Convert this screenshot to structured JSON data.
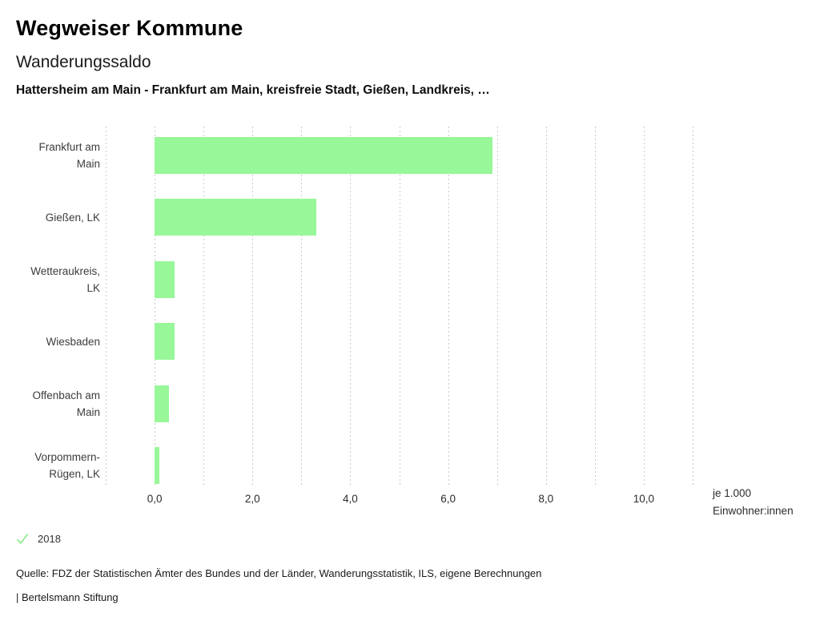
{
  "header": {
    "title": "Wegweiser Kommune",
    "subtitle": "Wanderungssaldo",
    "context": "Hattersheim am Main - Frankfurt am Main, kreisfreie Stadt, Gießen, Landkreis, …"
  },
  "chart_data": {
    "type": "bar",
    "orientation": "horizontal",
    "title": "Wanderungssaldo",
    "categories": [
      "Frankfurt am Main",
      "Gießen, LK",
      "Wetteraukreis, LK",
      "Wiesbaden",
      "Offenbach am Main",
      "Vorpommern-Rügen, LK"
    ],
    "label_lines": [
      [
        "Frankfurt am",
        "Main"
      ],
      [
        "Gießen, LK"
      ],
      [
        "Wetteraukreis,",
        "LK"
      ],
      [
        "Wiesbaden"
      ],
      [
        "Offenbach am",
        "Main"
      ],
      [
        "Vorpommern-",
        "Rügen, LK"
      ]
    ],
    "series": [
      {
        "name": "2018",
        "values": [
          6.9,
          3.3,
          0.4,
          0.4,
          0.3,
          0.1
        ]
      }
    ],
    "xlim": [
      -1,
      11
    ],
    "gridline_step": 1,
    "x_tick_values": [
      0,
      2,
      4,
      6,
      8,
      10
    ],
    "x_tick_labels": [
      "0,0",
      "2,0",
      "4,0",
      "6,0",
      "8,0",
      "10,0"
    ],
    "xlabel": "je 1.000 Einwohner:innen",
    "ylabel": "",
    "grid": true,
    "legend_position": "bottom-left",
    "bar_color": "#98f798",
    "gridline_color": "#c9c9c9"
  },
  "axis": {
    "unit_lines": [
      "je 1.000",
      "Einwohner:innen"
    ]
  },
  "legend": {
    "check_color": "#97ee97",
    "items": [
      {
        "icon": "check-icon",
        "label": "2018"
      }
    ]
  },
  "footer": {
    "source": "Quelle: FDZ der Statistischen Ämter des Bundes und der Länder, Wanderungsstatistik, ILS, eigene Berechnungen",
    "attribution": "| Bertelsmann Stiftung"
  }
}
